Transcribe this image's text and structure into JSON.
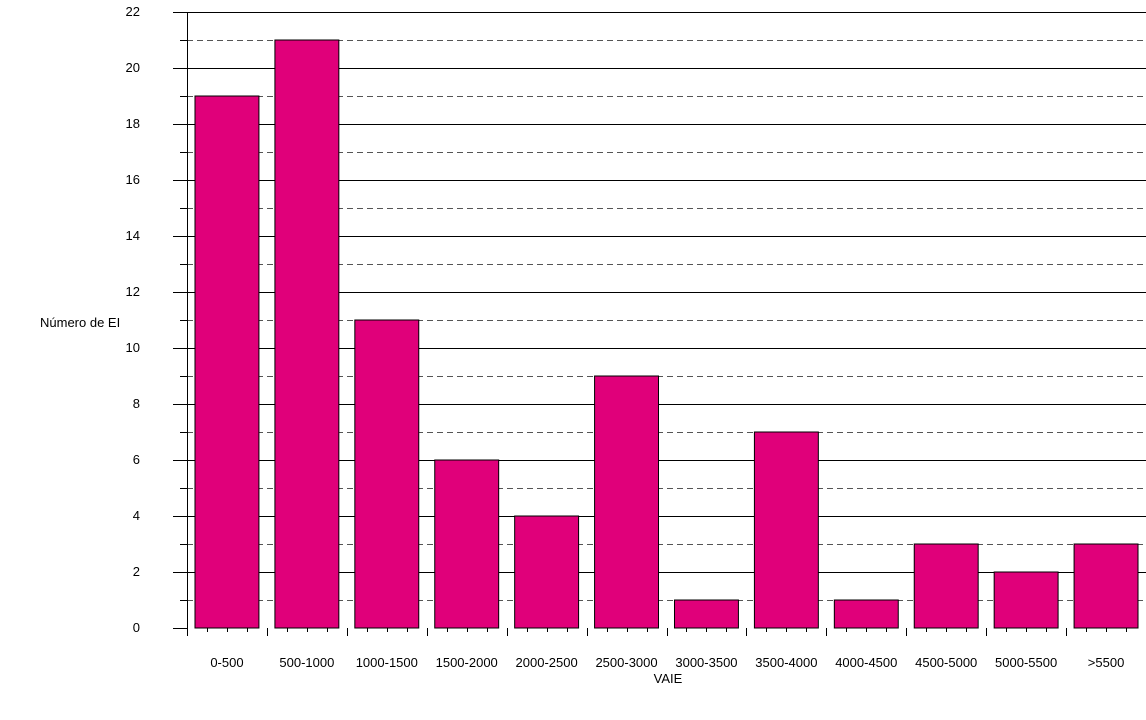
{
  "chart_data": {
    "type": "bar",
    "title": "",
    "xlabel": "VAIE",
    "ylabel": "Número de EI",
    "categories": [
      "0-500",
      "500-1000",
      "1000-1500",
      "1500-2000",
      "2000-2500",
      "2500-3000",
      "3000-3500",
      "3500-4000",
      "4000-4500",
      "4500-5000",
      "5000-5500",
      ">5500"
    ],
    "values": [
      19,
      21,
      11,
      6,
      4,
      9,
      1,
      7,
      1,
      3,
      2,
      3
    ],
    "ylim": [
      0,
      22
    ],
    "yticks": [
      "0",
      "2",
      "4",
      "6",
      "8",
      "10",
      "12",
      "14",
      "16",
      "18",
      "20",
      "22"
    ],
    "grid": "solid lines at even values, dashed lines at odd values",
    "legend": "none",
    "bar_color": "#E0007A"
  }
}
